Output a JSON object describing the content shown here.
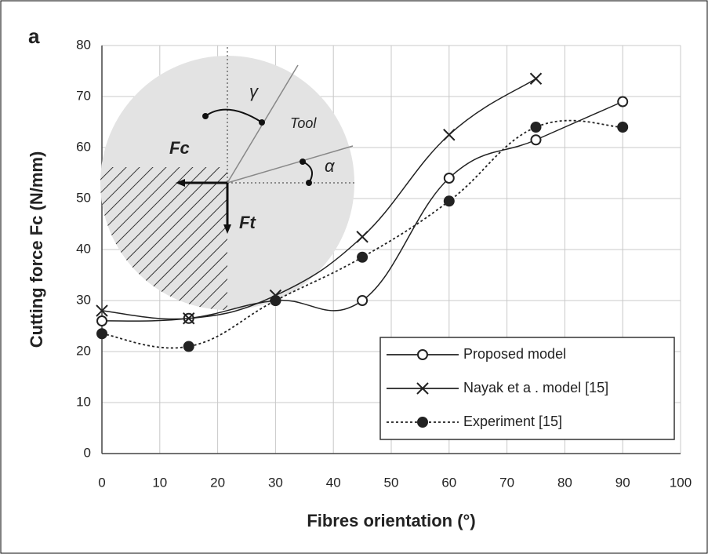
{
  "chart_data": {
    "type": "line",
    "panel_label": "a",
    "xlabel": "Fibres orientation (°)",
    "ylabel": "Cutting force Fc (N/mm)",
    "xlim": [
      0,
      100
    ],
    "xticks": [
      0,
      10,
      20,
      30,
      40,
      50,
      60,
      70,
      80,
      90,
      100
    ],
    "ylim": [
      0,
      80
    ],
    "yticks": [
      0,
      10,
      20,
      30,
      40,
      50,
      60,
      70,
      80
    ],
    "grid": true,
    "legend": "lower right",
    "annotations": [
      "Tool",
      "γ",
      "α",
      "Fc",
      "Ft"
    ],
    "series": [
      {
        "name": "Proposed model",
        "color": "#222222",
        "marker": "open-circle",
        "dash": "solid",
        "x": [
          0,
          15,
          30,
          45,
          60,
          75,
          90
        ],
        "values": [
          26,
          26.5,
          30,
          30,
          54,
          61.5,
          69
        ]
      },
      {
        "name": "Nayak et a . model [15]",
        "color": "#222222",
        "marker": "cross",
        "dash": "solid",
        "x": [
          0,
          15,
          30,
          45,
          60,
          75
        ],
        "values": [
          28,
          26.5,
          31,
          42.5,
          62.5,
          73.5
        ]
      },
      {
        "name": "Experiment [15]",
        "color": "#222222",
        "marker": "filled-circle",
        "dash": "dotted",
        "x": [
          0,
          15,
          30,
          45,
          60,
          75,
          90
        ],
        "values": [
          23.5,
          21,
          30,
          38.5,
          49.5,
          64,
          64
        ]
      }
    ]
  }
}
